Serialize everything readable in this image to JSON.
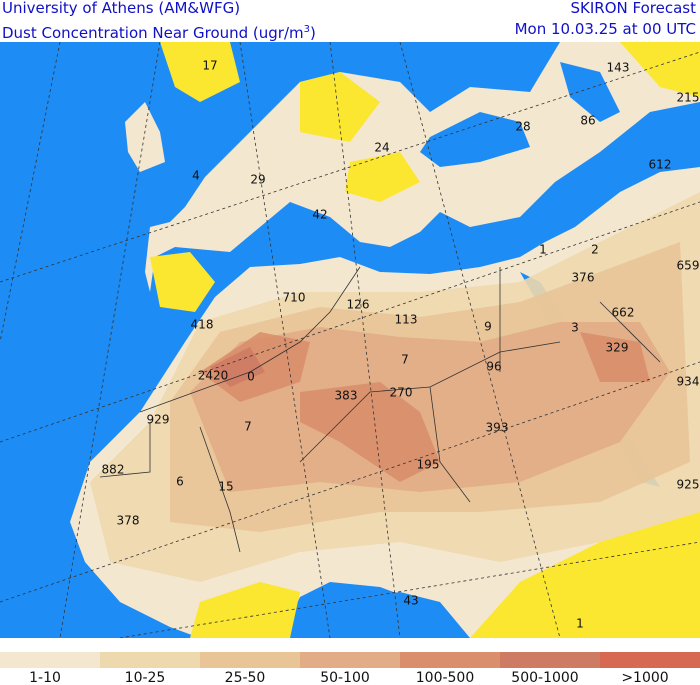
{
  "header": {
    "title": "University of Athens (AM&WFG)",
    "subtitle": "Dust Concentration Near Ground (ugr/m",
    "subtitle_superscript": "3",
    "subtitle_end": ")",
    "model": "SKIRON Forecast",
    "date": "Mon 10.03.25 at 00 UTC"
  },
  "map_labels": [
    17,
    143,
    215,
    28,
    86,
    24,
    612,
    4,
    29,
    42,
    1,
    2,
    376,
    659,
    710,
    126,
    113,
    9,
    662,
    418,
    3,
    329,
    7,
    96,
    934,
    2420,
    0,
    383,
    270,
    929,
    7,
    393,
    195,
    882,
    6,
    15,
    925,
    378,
    43,
    1
  ],
  "legend": [
    {
      "label": "1-10",
      "color": "#f3e7d0"
    },
    {
      "label": "10-25",
      "color": "#eed8ae"
    },
    {
      "label": "25-50",
      "color": "#e8c497"
    },
    {
      "label": "50-100",
      "color": "#e1ac86"
    },
    {
      "label": "100-500",
      "color": "#d98f6c"
    },
    {
      "label": "500-1000",
      "color": "#cd7b63"
    },
    {
      "label": ">1000",
      "color": "#d76852"
    }
  ]
}
